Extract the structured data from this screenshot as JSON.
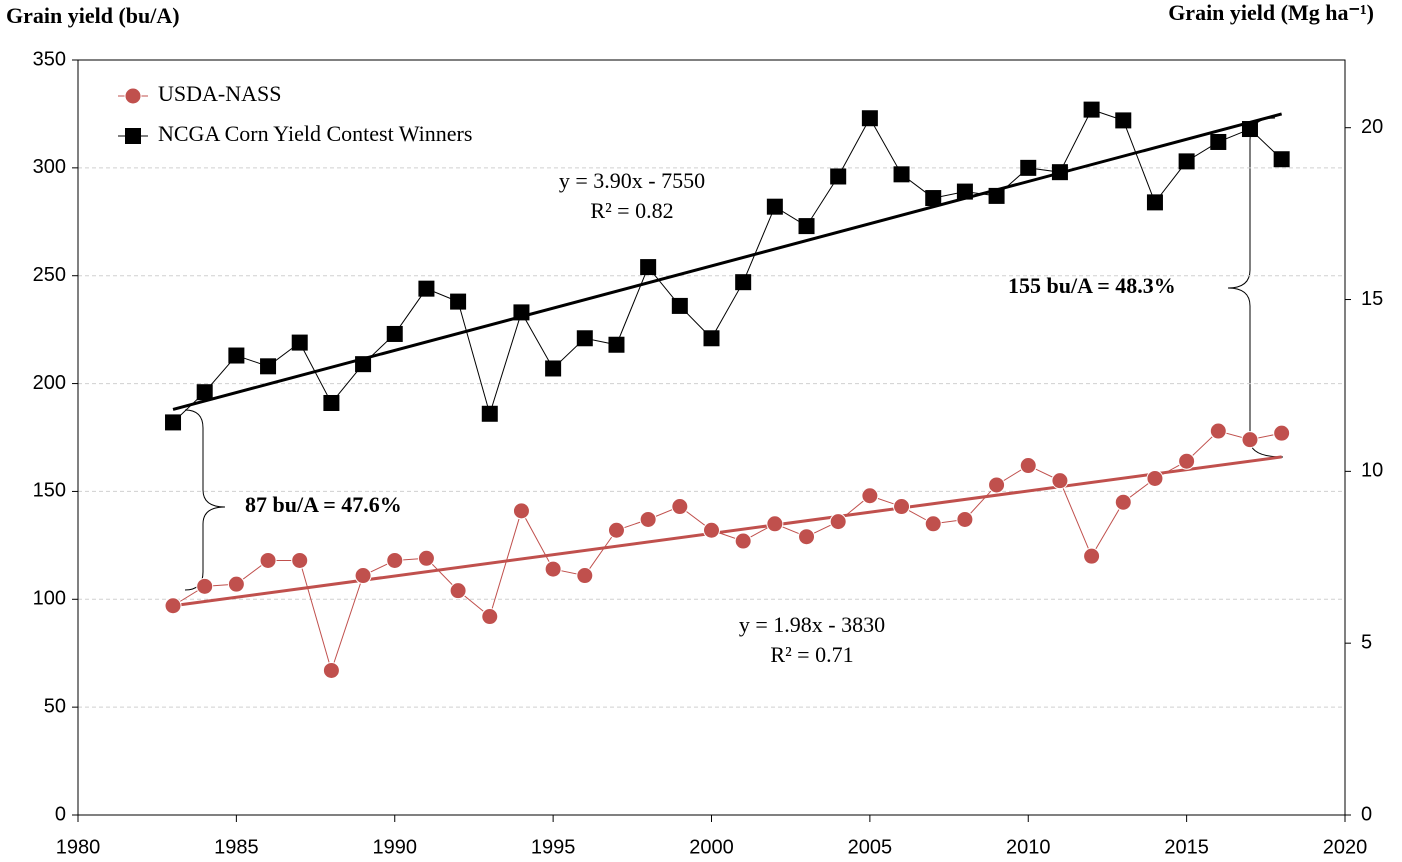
{
  "chart_data": {
    "type": "line",
    "y_title": "Grain yield (bu/A)",
    "y2_title": "Grain yield (Mg ha⁻¹)",
    "xlim": [
      1980,
      2020
    ],
    "xticks": [
      1980,
      1985,
      1990,
      1995,
      2000,
      2005,
      2010,
      2015,
      2020
    ],
    "ylim": [
      0,
      350
    ],
    "yticks": [
      0,
      50,
      100,
      150,
      200,
      250,
      300,
      350
    ],
    "y2lim": [
      0,
      21.97
    ],
    "y2ticks": [
      0,
      5,
      10,
      15,
      20
    ],
    "grid": true,
    "legend": "upper left",
    "x": [
      1983,
      1984,
      1985,
      1986,
      1987,
      1988,
      1989,
      1990,
      1991,
      1992,
      1993,
      1994,
      1995,
      1996,
      1997,
      1998,
      1999,
      2000,
      2001,
      2002,
      2003,
      2004,
      2005,
      2006,
      2007,
      2008,
      2009,
      2010,
      2011,
      2012,
      2013,
      2014,
      2015,
      2016,
      2017,
      2018
    ],
    "series": [
      {
        "name": "USDA-NASS",
        "color": "#c0504d",
        "marker": "circle",
        "values": [
          97,
          106,
          107,
          118,
          118,
          67,
          111,
          118,
          119,
          104,
          92,
          141,
          114,
          111,
          132,
          137,
          143,
          132,
          127,
          135,
          129,
          136,
          148,
          143,
          135,
          137,
          153,
          162,
          155,
          120,
          145,
          156,
          164,
          178,
          174,
          177
        ],
        "trend": {
          "x": [
            1983,
            2018
          ],
          "values": [
            97,
            166
          ]
        },
        "equation": "y = 1.98x - 3830",
        "r2": "R² = 0.71"
      },
      {
        "name": "NCGA Corn Yield Contest Winners",
        "color": "#000000",
        "marker": "square",
        "values": [
          182,
          196,
          213,
          208,
          219,
          191,
          209,
          223,
          244,
          238,
          186,
          233,
          207,
          221,
          218,
          254,
          236,
          221,
          247,
          282,
          273,
          296,
          323,
          297,
          286,
          289,
          287,
          300,
          298,
          327,
          322,
          284,
          303,
          312,
          318,
          304
        ],
        "trend": {
          "x": [
            1983,
            2018
          ],
          "values": [
            188,
            325
          ]
        },
        "equation": "y = 3.90x - 7550",
        "r2": "R² = 0.82"
      }
    ],
    "annotations": [
      "87 bu/A = 47.6%",
      "155 bu/A = 48.3%"
    ]
  }
}
